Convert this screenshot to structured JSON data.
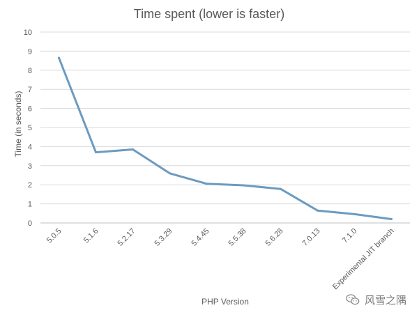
{
  "chart_data": {
    "type": "line",
    "title": "Time spent (lower is faster)",
    "xlabel": "PHP Version",
    "ylabel": "Time (in seconds)",
    "categories": [
      "5.0.5",
      "5.1.6",
      "5.2.17",
      "5.3.29",
      "5.4.45",
      "5.5.38",
      "5.6.28",
      "7.0.13",
      "7.1.0",
      "Experimental JIT branch"
    ],
    "series": [
      {
        "values": [
          8.65,
          3.7,
          3.85,
          2.6,
          2.05,
          1.97,
          1.78,
          0.65,
          0.46,
          0.2
        ]
      }
    ],
    "ylim": [
      0,
      10
    ],
    "yticks": [
      0,
      1,
      2,
      3,
      4,
      5,
      6,
      7,
      8,
      9,
      10
    ],
    "grid": true,
    "legend": "none",
    "colors": {
      "line": "#6b9bc0",
      "grid": "#d9d9d9",
      "axis": "#bfbfbf",
      "text": "#595959",
      "title": "#595959"
    }
  },
  "watermark": {
    "text": "风雪之隅",
    "icon": "wechat-icon"
  }
}
